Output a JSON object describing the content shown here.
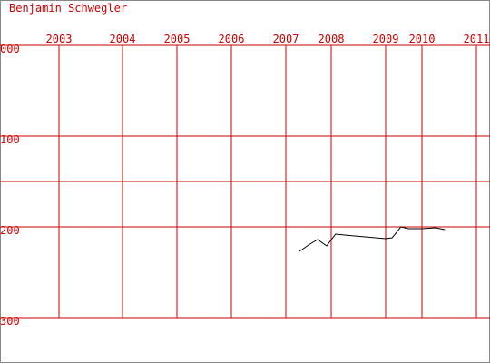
{
  "chart_data": {
    "type": "line",
    "title": "Benjamin Schwegler",
    "x": [
      2007.3,
      2007.5,
      2007.7,
      2007.9,
      2008.08,
      2008.25,
      2009.0,
      2009.18,
      2009.42,
      2009.62,
      2010.0,
      2010.25,
      2010.42
    ],
    "series": [
      {
        "color": "#000000",
        "values": [
          227,
          220,
          214,
          221,
          208,
          209,
          213,
          212,
          200,
          202,
          202,
          201,
          203
        ]
      }
    ],
    "xticks": [
      2003,
      2004,
      2005,
      2006,
      2007,
      2008,
      2009,
      2010,
      2011
    ],
    "ylim": [
      0,
      300
    ],
    "y_inverted": true,
    "yticks": [
      {
        "value": 0,
        "label": "000"
      },
      100,
      200,
      300
    ],
    "minor_yticks": [
      150
    ],
    "grid": true,
    "grid_color": "#cc0000"
  }
}
